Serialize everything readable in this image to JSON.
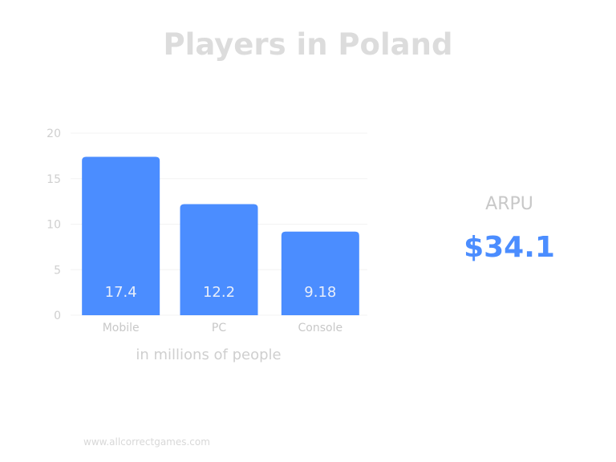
{
  "title": "Players in Poland",
  "chart_data": {
    "type": "bar",
    "categories": [
      "Mobile",
      "PC",
      "Console"
    ],
    "values": [
      17.4,
      12.2,
      9.18
    ],
    "value_labels": [
      "17.4",
      "12.2",
      "9.18"
    ],
    "xlabel": "in millions of people",
    "ylabel": "",
    "ylim": [
      0,
      20
    ],
    "yticks": [
      0,
      5,
      10,
      15,
      20
    ],
    "grid": true,
    "bar_color": "#4b8dff"
  },
  "arpu": {
    "label": "ARPU",
    "value": "$34.1"
  },
  "footer": "www.allcorrectgames.com"
}
